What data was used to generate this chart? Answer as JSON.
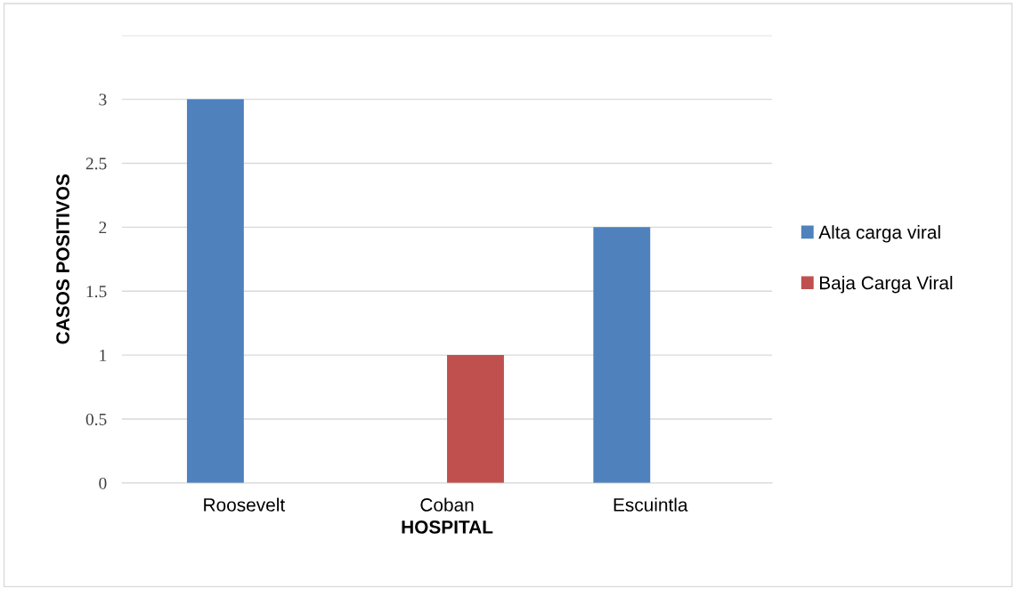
{
  "chart_data": {
    "type": "bar",
    "xlabel": "HOSPITAL",
    "ylabel": "CASOS POSITIVOS",
    "categories": [
      "Roosevelt",
      "Coban",
      "Escuintla"
    ],
    "series": [
      {
        "name": "Alta carga viral",
        "color": "#4f81bd",
        "values": [
          3,
          0,
          2
        ]
      },
      {
        "name": "Baja Carga Viral",
        "color": "#c0504d",
        "values": [
          0,
          1,
          0
        ]
      }
    ],
    "ylim": [
      0,
      3.5
    ],
    "yticks": [
      0,
      0.5,
      1,
      1.5,
      2,
      2.5,
      3,
      {
        "value": 3.5,
        "label": null
      }
    ],
    "grid": "y",
    "legend": "right"
  }
}
